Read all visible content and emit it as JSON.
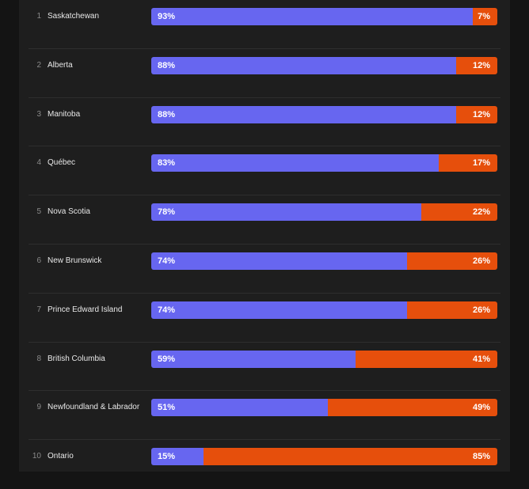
{
  "colors": {
    "series_a": "#6766f0",
    "series_b": "#e64f0c"
  },
  "chart_data": {
    "type": "bar",
    "orientation": "horizontal-stacked-100",
    "title": "",
    "xlabel": "",
    "ylabel": "",
    "ylim": [
      0,
      100
    ],
    "ranks": [
      "1",
      "2",
      "3",
      "4",
      "5",
      "6",
      "7",
      "8",
      "9",
      "10"
    ],
    "categories": [
      "Saskatchewan",
      "Alberta",
      "Manitoba",
      "Québec",
      "Nova Scotia",
      "New Brunswick",
      "Prince Edward Island",
      "British Columbia",
      "Newfoundland & Labrador",
      "Ontario"
    ],
    "series": [
      {
        "name": "share-a",
        "values": [
          93,
          88,
          88,
          83,
          78,
          74,
          74,
          59,
          51,
          15
        ]
      },
      {
        "name": "share-b",
        "values": [
          7,
          12,
          12,
          17,
          22,
          26,
          26,
          41,
          49,
          85
        ]
      }
    ]
  }
}
